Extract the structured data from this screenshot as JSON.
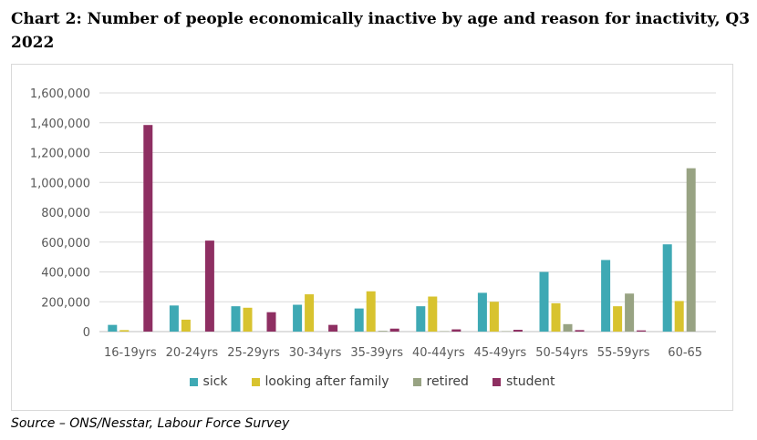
{
  "title": "Chart 2: Number of people economically inactive by age and reason for inactivity, Q3 2022",
  "source": "Source – ONS/Nesstar, Labour Force Survey",
  "chart_data": {
    "type": "bar",
    "title": "",
    "xlabel": "",
    "ylabel": "",
    "ylim": [
      0,
      1600000
    ],
    "yticks": [
      0,
      200000,
      400000,
      600000,
      800000,
      1000000,
      1200000,
      1400000,
      1600000
    ],
    "ytick_labels": [
      "0",
      "200,000",
      "400,000",
      "600,000",
      "800,000",
      "1,000,000",
      "1,200,000",
      "1,400,000",
      "1,600,000"
    ],
    "grid": true,
    "legend_position": "bottom",
    "categories": [
      "16-19yrs",
      "20-24yrs",
      "25-29yrs",
      "30-34yrs",
      "35-39yrs",
      "40-44yrs",
      "45-49yrs",
      "50-54yrs",
      "55-59yrs",
      "60-65"
    ],
    "series": [
      {
        "name": "sick",
        "color": "#3EA9B4",
        "values": [
          45000,
          175000,
          170000,
          180000,
          155000,
          170000,
          260000,
          400000,
          480000,
          585000
        ]
      },
      {
        "name": "looking after family",
        "color": "#D8C32F",
        "values": [
          10000,
          80000,
          160000,
          250000,
          270000,
          235000,
          200000,
          190000,
          170000,
          205000
        ]
      },
      {
        "name": "retired",
        "color": "#98A383",
        "values": [
          0,
          0,
          0,
          0,
          5000,
          3000,
          3000,
          50000,
          255000,
          1095000
        ]
      },
      {
        "name": "student",
        "color": "#8E2F62",
        "values": [
          1385000,
          610000,
          130000,
          45000,
          20000,
          15000,
          12000,
          10000,
          8000,
          0
        ]
      }
    ]
  }
}
